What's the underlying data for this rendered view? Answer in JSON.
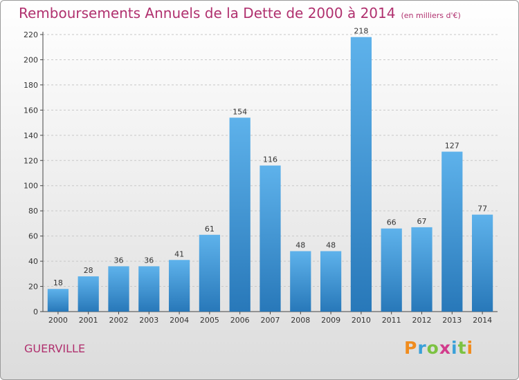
{
  "title": "Remboursements Annuels de la Dette de 2000 à 2014",
  "subtitle": "(en milliers d'€)",
  "commune": "GUERVILLE",
  "brand": "Proxiti",
  "brand_colors": [
    "#f08c1e",
    "#3aa0d8",
    "#7cc242",
    "#d23c8c",
    "#3aa0d8",
    "#7cc242",
    "#f08c1e"
  ],
  "colors": {
    "bar_top": "#5eb2eb",
    "bar_bottom": "#2878b9",
    "title": "#b0306e",
    "grid": "#c8c8c8"
  },
  "chart_data": {
    "type": "bar",
    "categories": [
      "2000",
      "2001",
      "2002",
      "2003",
      "2004",
      "2005",
      "2006",
      "2007",
      "2008",
      "2009",
      "2010",
      "2011",
      "2012",
      "2013",
      "2014"
    ],
    "values": [
      18,
      28,
      36,
      36,
      41,
      61,
      154,
      116,
      48,
      48,
      218,
      66,
      67,
      127,
      77
    ],
    "title": "Remboursements Annuels de la Dette de 2000 à 2014",
    "subtitle": "(en milliers d'€)",
    "xlabel": "",
    "ylabel": "",
    "ylim": [
      0,
      220
    ],
    "yticks": [
      0,
      20,
      40,
      60,
      80,
      100,
      120,
      140,
      160,
      180,
      200,
      220
    ],
    "grid": true,
    "data_labels": true
  }
}
